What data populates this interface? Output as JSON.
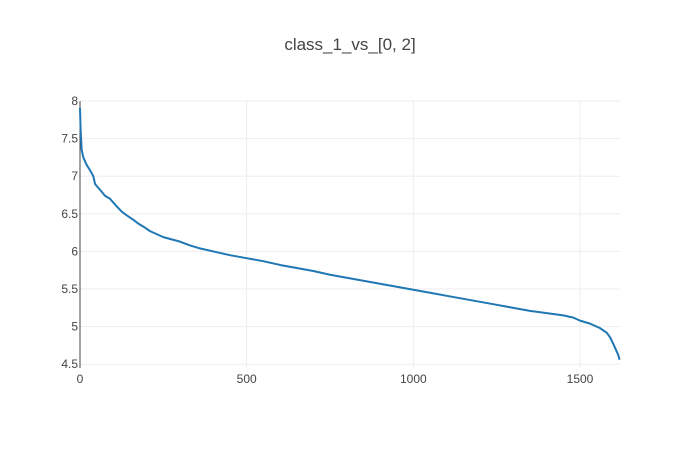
{
  "chart_data": {
    "type": "line",
    "title": "class_1_vs_[0, 2]",
    "xlabel": "",
    "ylabel": "",
    "xlim": [
      0,
      1620
    ],
    "ylim": [
      4.45,
      8.0
    ],
    "grid": true,
    "x_ticks": [
      {
        "value": 0,
        "label": "0"
      },
      {
        "value": 500,
        "label": "500"
      },
      {
        "value": 1000,
        "label": "1000"
      },
      {
        "value": 1500,
        "label": "1500"
      }
    ],
    "y_ticks": [
      {
        "value": 4.5,
        "label": "4.5"
      },
      {
        "value": 5,
        "label": "5"
      },
      {
        "value": 5.5,
        "label": "5.5"
      },
      {
        "value": 6,
        "label": "6"
      },
      {
        "value": 6.5,
        "label": "6.5"
      },
      {
        "value": 7,
        "label": "7"
      },
      {
        "value": 7.5,
        "label": "7.5"
      },
      {
        "value": 8,
        "label": "8"
      }
    ],
    "series": [
      {
        "color": "#1f77b4",
        "x": [
          0,
          2,
          5,
          10,
          15,
          20,
          30,
          40,
          45,
          50,
          60,
          75,
          90,
          100,
          110,
          125,
          140,
          160,
          175,
          190,
          210,
          230,
          250,
          275,
          300,
          330,
          360,
          400,
          450,
          500,
          550,
          600,
          650,
          700,
          750,
          800,
          850,
          900,
          950,
          1000,
          1050,
          1100,
          1150,
          1200,
          1250,
          1300,
          1350,
          1400,
          1450,
          1480,
          1500,
          1530,
          1560,
          1580,
          1590,
          1600,
          1610,
          1615,
          1618
        ],
        "y": [
          7.9,
          7.6,
          7.35,
          7.25,
          7.2,
          7.15,
          7.08,
          7.0,
          6.9,
          6.87,
          6.82,
          6.74,
          6.7,
          6.65,
          6.6,
          6.53,
          6.48,
          6.42,
          6.37,
          6.33,
          6.27,
          6.23,
          6.19,
          6.16,
          6.13,
          6.08,
          6.04,
          6.0,
          5.95,
          5.91,
          5.87,
          5.82,
          5.78,
          5.74,
          5.69,
          5.65,
          5.61,
          5.57,
          5.53,
          5.49,
          5.45,
          5.41,
          5.37,
          5.33,
          5.29,
          5.25,
          5.21,
          5.18,
          5.15,
          5.12,
          5.08,
          5.04,
          4.98,
          4.92,
          4.86,
          4.77,
          4.67,
          4.62,
          4.57
        ]
      }
    ]
  }
}
